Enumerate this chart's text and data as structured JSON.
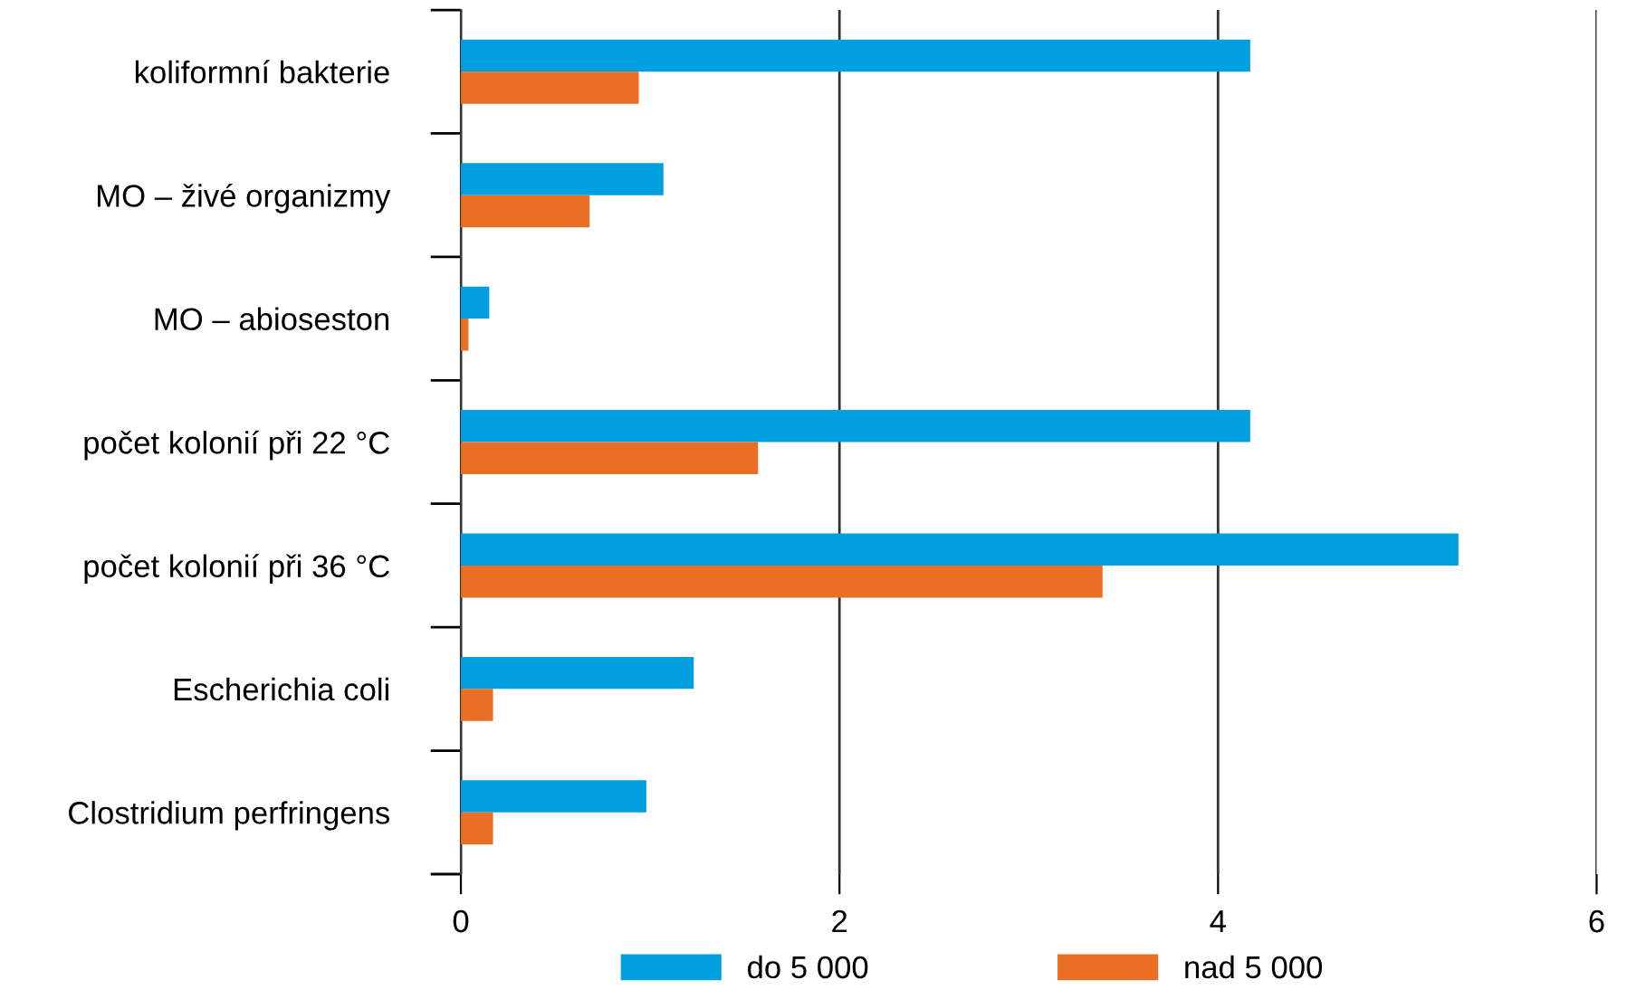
{
  "chart_data": {
    "type": "bar",
    "orientation": "horizontal",
    "categories": [
      "koliformní bakterie",
      "MO – živé organizmy",
      "MO – abioseston",
      "počet kolonií při 22 °C",
      "počet kolonií při 36 °C",
      "Escherichia coli",
      "Clostridium perfringens"
    ],
    "series": [
      {
        "name": "do 5 000",
        "color": "#00a0e0",
        "values": [
          4.17,
          1.07,
          0.15,
          4.17,
          5.27,
          1.23,
          0.98
        ]
      },
      {
        "name": "nad 5 000",
        "color": "#ea6f24",
        "values": [
          0.94,
          0.68,
          0.04,
          1.57,
          3.39,
          0.17,
          0.17
        ]
      }
    ],
    "xlim": [
      0,
      6
    ],
    "xticks": [
      0,
      2,
      4,
      6
    ],
    "grid": "x",
    "legend": "bottom"
  }
}
